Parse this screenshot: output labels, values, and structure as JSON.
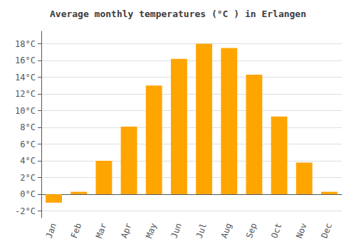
{
  "chart_data": {
    "type": "bar",
    "title": "Average monthly temperatures (°C ) in Erlangen",
    "categories": [
      "Jan",
      "Feb",
      "Mar",
      "Apr",
      "May",
      "Jun",
      "Jul",
      "Aug",
      "Sep",
      "Oct",
      "Nov",
      "Dec"
    ],
    "values": [
      -1.0,
      0.3,
      4.0,
      8.1,
      13.0,
      16.2,
      18.0,
      17.5,
      14.3,
      9.3,
      3.8,
      0.3
    ],
    "color": "#FFA500",
    "ylim": [
      -2.8,
      19.5
    ],
    "yticks": [
      {
        "value": -2,
        "label": "-2°C"
      },
      {
        "value": 0,
        "label": "0°C"
      },
      {
        "value": 2,
        "label": "2°C"
      },
      {
        "value": 4,
        "label": "4°C"
      },
      {
        "value": 6,
        "label": "6°C"
      },
      {
        "value": 8,
        "label": "8°C"
      },
      {
        "value": 10,
        "label": "10°C"
      },
      {
        "value": 12,
        "label": "12°C"
      },
      {
        "value": 14,
        "label": "14°C"
      },
      {
        "value": 16,
        "label": "16°C"
      },
      {
        "value": 18,
        "label": "18°C"
      }
    ],
    "grid": true
  }
}
